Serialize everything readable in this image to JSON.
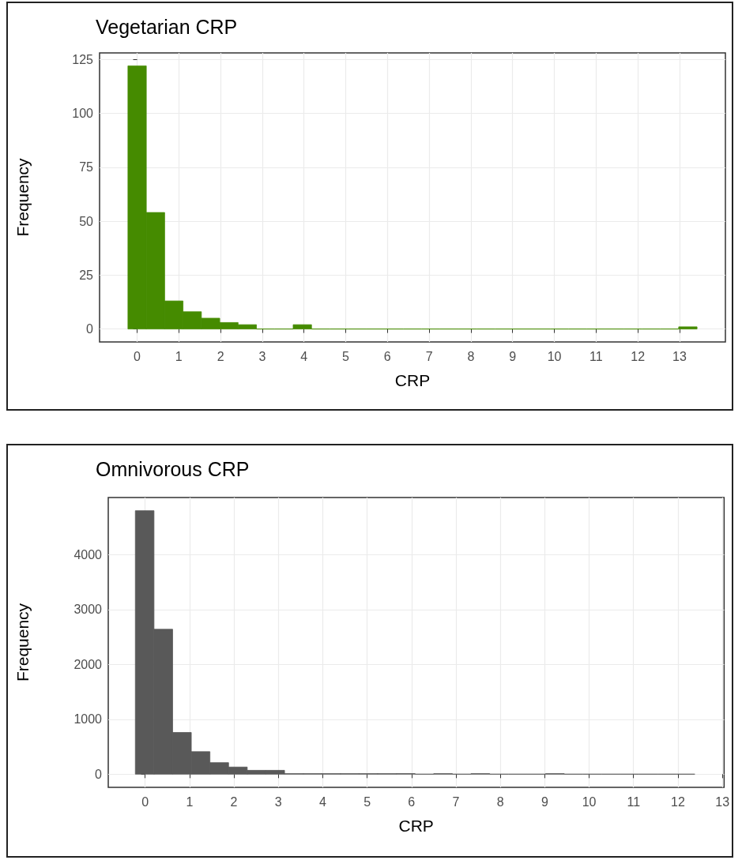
{
  "chart_data": [
    {
      "type": "histogram",
      "title": "Vegetarian CRP",
      "xlabel": "CRP",
      "ylabel": "Frequency",
      "color": "#458b00",
      "bins": [
        -0.22,
        0.22,
        0.66,
        1.1,
        1.54,
        1.98,
        2.42,
        2.86,
        3.3,
        3.74,
        4.18,
        4.62,
        5.06,
        5.5,
        5.94,
        6.38,
        6.82,
        7.26,
        7.7,
        8.14,
        8.58,
        9.02,
        9.46,
        9.9,
        10.34,
        10.78,
        11.22,
        11.66,
        12.1,
        12.54,
        12.98,
        13.42
      ],
      "values": [
        122,
        54,
        13,
        8,
        5,
        3,
        2,
        0,
        0,
        2,
        0,
        0,
        0,
        0,
        0,
        0,
        0,
        0,
        0,
        0,
        0,
        0,
        0,
        0,
        0,
        0,
        0,
        0,
        0,
        0,
        1
      ],
      "xlim": [
        -0.9,
        14.1
      ],
      "xticks": [
        0,
        1,
        2,
        3,
        4,
        5,
        6,
        7,
        8,
        9,
        10,
        11,
        12,
        13
      ],
      "ylim": [
        -6,
        128
      ],
      "yticks": [
        0,
        25,
        50,
        75,
        100,
        125
      ],
      "grid": true
    },
    {
      "type": "histogram",
      "title": "Omnivorous CRP",
      "xlabel": "CRP",
      "ylabel": "Frequency",
      "color": "#595959",
      "bins": [
        -0.22,
        0.2,
        0.62,
        1.04,
        1.46,
        1.88,
        2.3,
        2.72,
        3.14,
        3.56,
        3.98,
        4.4,
        4.82,
        5.24,
        5.66,
        6.08,
        6.5,
        6.92,
        7.34,
        7.76,
        8.18,
        8.6,
        9.02,
        9.44,
        9.86,
        10.28,
        10.7,
        11.12,
        11.54,
        11.96,
        12.38
      ],
      "values": [
        4800,
        2640,
        760,
        410,
        210,
        130,
        70,
        70,
        10,
        10,
        10,
        10,
        10,
        10,
        10,
        0,
        10,
        0,
        10,
        0,
        0,
        0,
        10,
        0,
        0,
        0,
        0,
        0,
        0,
        0
      ],
      "xlim": [
        -0.83,
        13.04
      ],
      "xticks": [
        0,
        1,
        2,
        3,
        4,
        5,
        6,
        7,
        8,
        9,
        10,
        11,
        12,
        13
      ],
      "ylim": [
        -240,
        5040
      ],
      "yticks": [
        0,
        1000,
        2000,
        3000,
        4000
      ],
      "grid": true
    }
  ]
}
